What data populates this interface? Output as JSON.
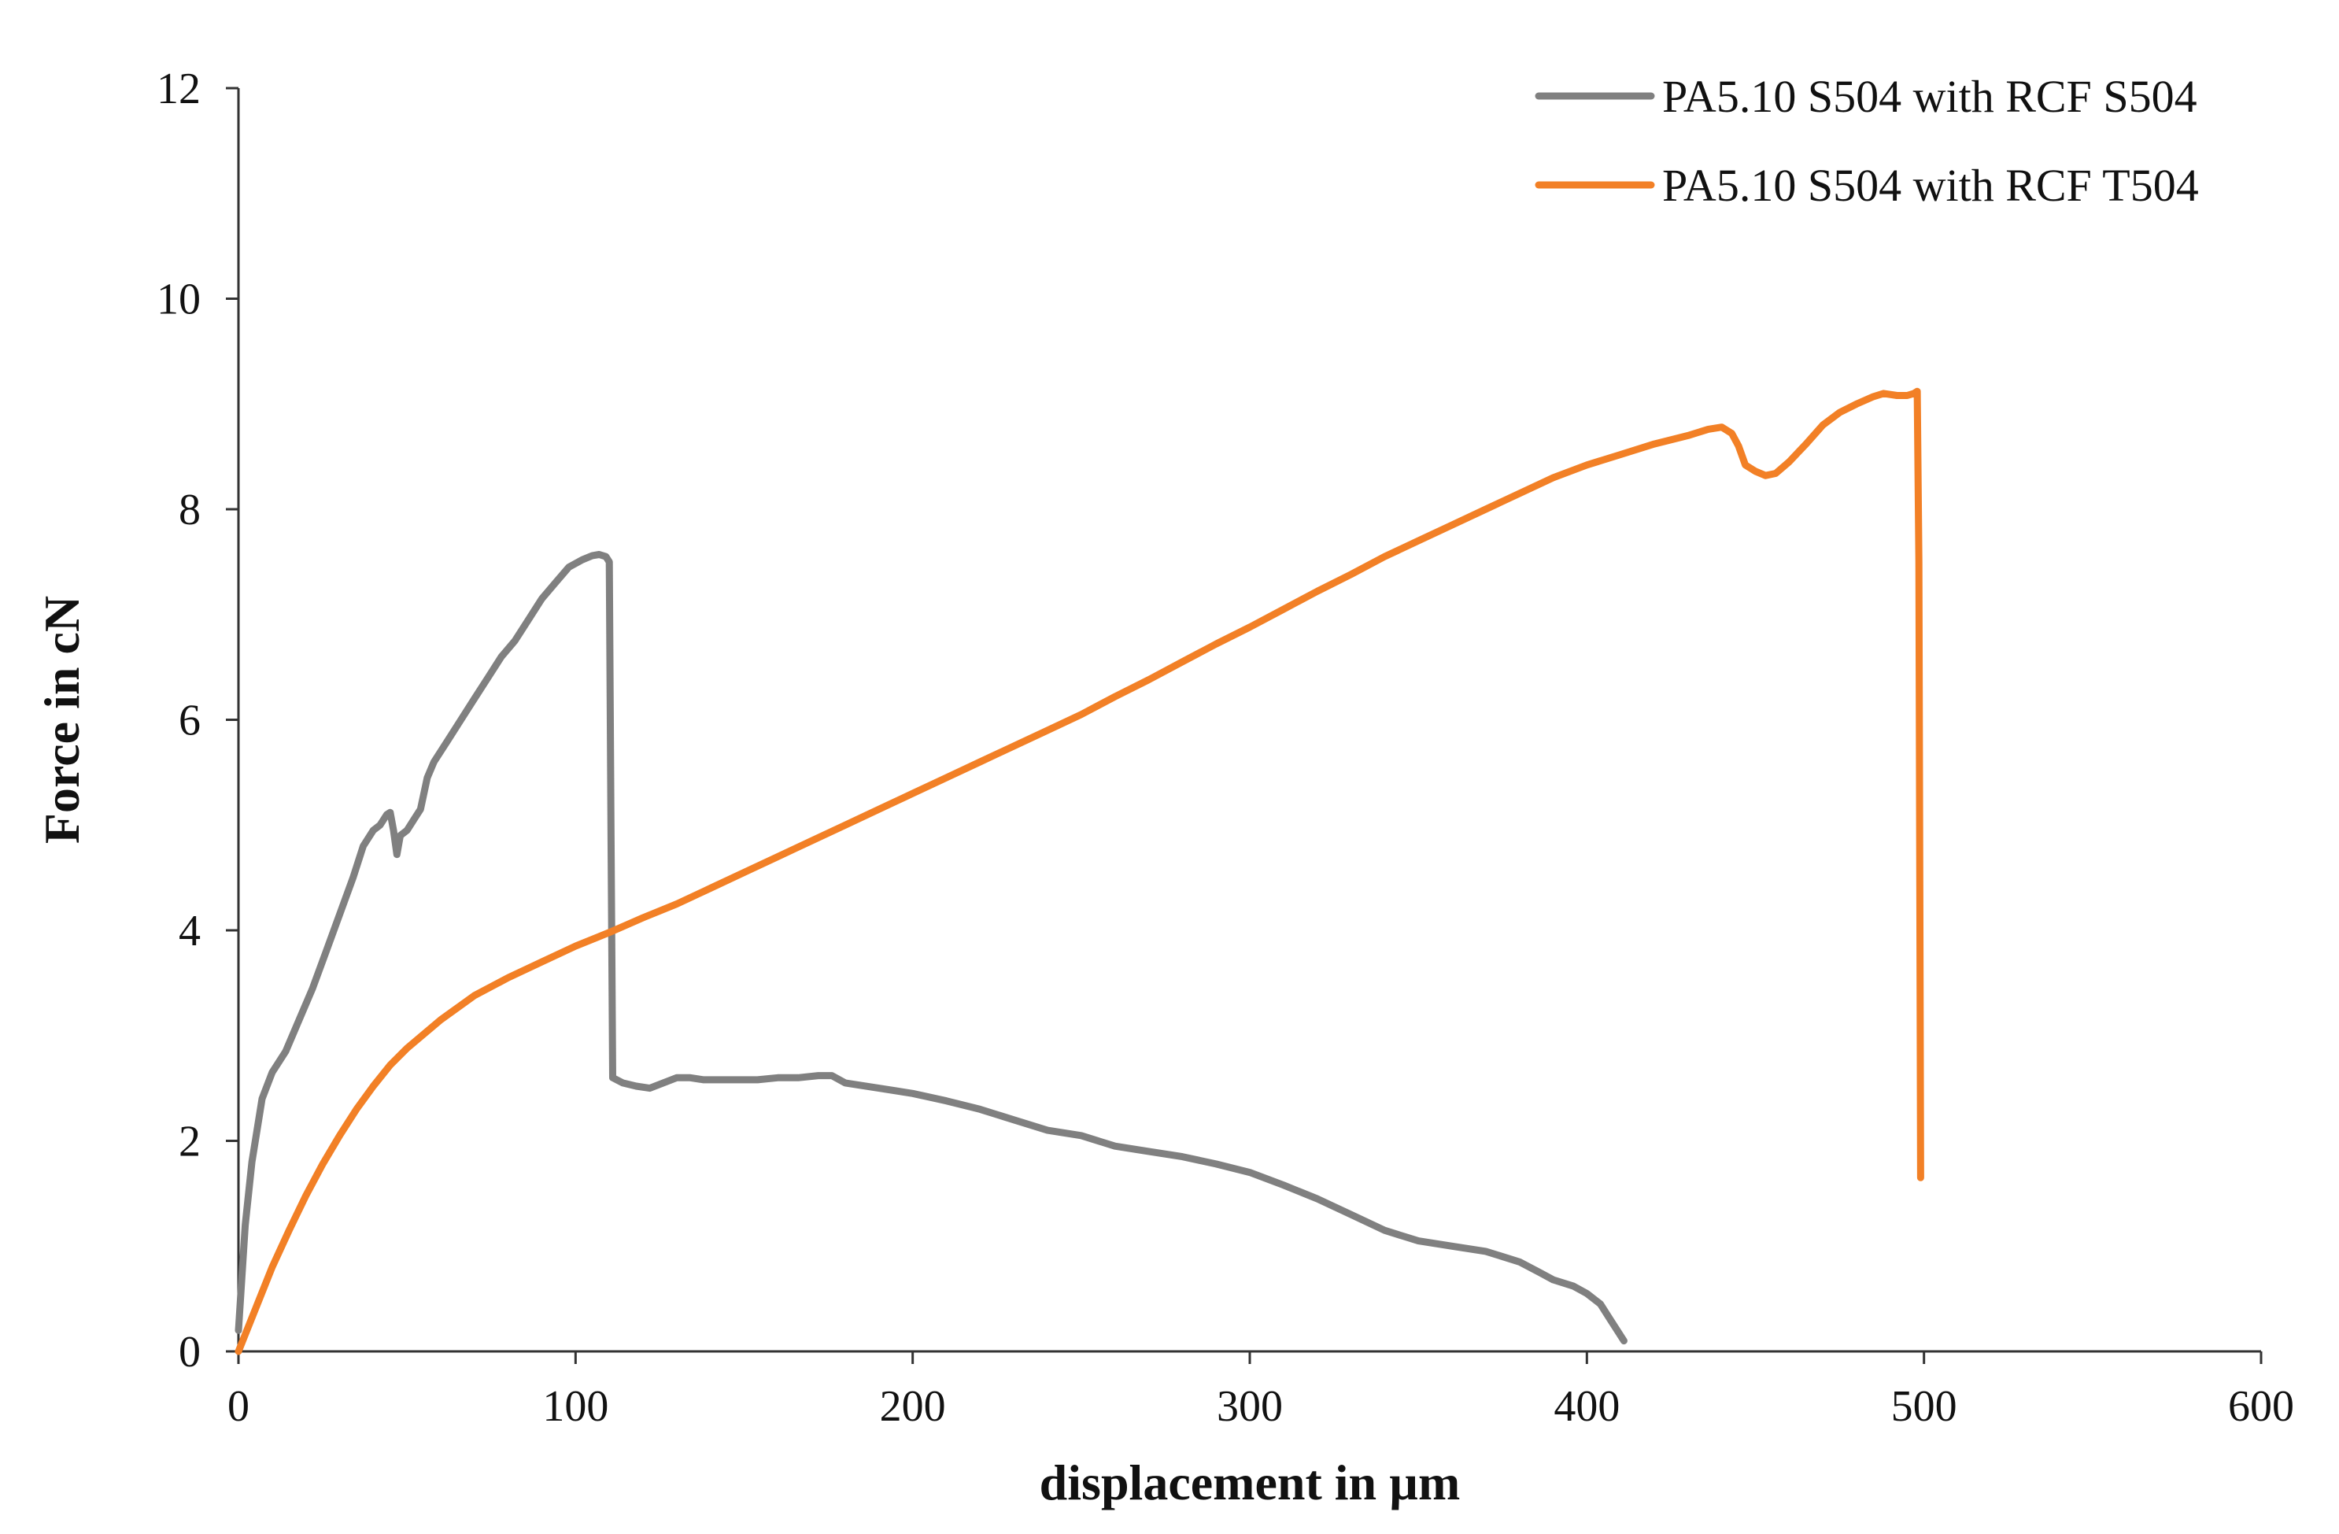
{
  "chart_data": {
    "type": "line",
    "title": "",
    "xlabel": "displacement in µm",
    "ylabel": "Force in cN",
    "xlim": [
      0,
      600
    ],
    "ylim": [
      0,
      12
    ],
    "x_ticks": [
      0,
      100,
      200,
      300,
      400,
      500,
      600
    ],
    "y_ticks": [
      0,
      2,
      4,
      6,
      8,
      10,
      12
    ],
    "x_tick_labels": [
      "0",
      "100",
      "200",
      "300",
      "400",
      "500",
      "600"
    ],
    "y_tick_labels": [
      "0",
      "2",
      "4",
      "6",
      "8",
      "10",
      "12"
    ],
    "grid": false,
    "legend_position": "top-right",
    "series": [
      {
        "name": "PA5.10 S504 with RCF S504",
        "color": "#808080",
        "points": [
          [
            0,
            0.2
          ],
          [
            2,
            1.2
          ],
          [
            4,
            1.8
          ],
          [
            7,
            2.4
          ],
          [
            10,
            2.65
          ],
          [
            14,
            2.85
          ],
          [
            18,
            3.15
          ],
          [
            22,
            3.45
          ],
          [
            26,
            3.8
          ],
          [
            30,
            4.15
          ],
          [
            34,
            4.5
          ],
          [
            37,
            4.8
          ],
          [
            40,
            4.95
          ],
          [
            42,
            5.0
          ],
          [
            44,
            5.1
          ],
          [
            45,
            5.12
          ],
          [
            46,
            4.95
          ],
          [
            47,
            4.72
          ],
          [
            48,
            4.9
          ],
          [
            50,
            4.95
          ],
          [
            52,
            5.05
          ],
          [
            54,
            5.15
          ],
          [
            56,
            5.45
          ],
          [
            58,
            5.6
          ],
          [
            62,
            5.8
          ],
          [
            66,
            6.0
          ],
          [
            70,
            6.2
          ],
          [
            74,
            6.4
          ],
          [
            78,
            6.6
          ],
          [
            82,
            6.75
          ],
          [
            86,
            6.95
          ],
          [
            90,
            7.15
          ],
          [
            94,
            7.3
          ],
          [
            98,
            7.45
          ],
          [
            102,
            7.52
          ],
          [
            105,
            7.56
          ],
          [
            107,
            7.57
          ],
          [
            109,
            7.55
          ],
          [
            110,
            7.5
          ],
          [
            110.5,
            5.0
          ],
          [
            111,
            2.6
          ],
          [
            114,
            2.55
          ],
          [
            118,
            2.52
          ],
          [
            122,
            2.5
          ],
          [
            126,
            2.55
          ],
          [
            130,
            2.6
          ],
          [
            134,
            2.6
          ],
          [
            138,
            2.58
          ],
          [
            142,
            2.58
          ],
          [
            148,
            2.58
          ],
          [
            154,
            2.58
          ],
          [
            160,
            2.6
          ],
          [
            166,
            2.6
          ],
          [
            172,
            2.62
          ],
          [
            176,
            2.62
          ],
          [
            180,
            2.55
          ],
          [
            190,
            2.5
          ],
          [
            200,
            2.45
          ],
          [
            210,
            2.38
          ],
          [
            220,
            2.3
          ],
          [
            230,
            2.2
          ],
          [
            240,
            2.1
          ],
          [
            250,
            2.05
          ],
          [
            260,
            1.95
          ],
          [
            270,
            1.9
          ],
          [
            280,
            1.85
          ],
          [
            290,
            1.78
          ],
          [
            300,
            1.7
          ],
          [
            310,
            1.58
          ],
          [
            320,
            1.45
          ],
          [
            330,
            1.3
          ],
          [
            340,
            1.15
          ],
          [
            350,
            1.05
          ],
          [
            360,
            1.0
          ],
          [
            370,
            0.95
          ],
          [
            380,
            0.85
          ],
          [
            386,
            0.75
          ],
          [
            390,
            0.68
          ],
          [
            396,
            0.62
          ],
          [
            400,
            0.55
          ],
          [
            404,
            0.45
          ],
          [
            407,
            0.3
          ],
          [
            409,
            0.2
          ],
          [
            411,
            0.1
          ]
        ]
      },
      {
        "name": "PA5.10 S504 with RCF T504",
        "color": "#f28026",
        "points": [
          [
            0,
            0.0
          ],
          [
            5,
            0.4
          ],
          [
            10,
            0.8
          ],
          [
            15,
            1.15
          ],
          [
            20,
            1.48
          ],
          [
            25,
            1.78
          ],
          [
            30,
            2.05
          ],
          [
            35,
            2.3
          ],
          [
            40,
            2.52
          ],
          [
            45,
            2.72
          ],
          [
            50,
            2.88
          ],
          [
            60,
            3.15
          ],
          [
            70,
            3.38
          ],
          [
            80,
            3.55
          ],
          [
            90,
            3.7
          ],
          [
            100,
            3.85
          ],
          [
            110,
            3.98
          ],
          [
            120,
            4.12
          ],
          [
            130,
            4.25
          ],
          [
            140,
            4.4
          ],
          [
            150,
            4.55
          ],
          [
            160,
            4.7
          ],
          [
            170,
            4.85
          ],
          [
            180,
            5.0
          ],
          [
            190,
            5.15
          ],
          [
            200,
            5.3
          ],
          [
            210,
            5.45
          ],
          [
            220,
            5.6
          ],
          [
            230,
            5.75
          ],
          [
            240,
            5.9
          ],
          [
            250,
            6.05
          ],
          [
            260,
            6.22
          ],
          [
            270,
            6.38
          ],
          [
            280,
            6.55
          ],
          [
            290,
            6.72
          ],
          [
            300,
            6.88
          ],
          [
            310,
            7.05
          ],
          [
            320,
            7.22
          ],
          [
            330,
            7.38
          ],
          [
            340,
            7.55
          ],
          [
            350,
            7.7
          ],
          [
            360,
            7.85
          ],
          [
            370,
            8.0
          ],
          [
            380,
            8.15
          ],
          [
            390,
            8.3
          ],
          [
            400,
            8.42
          ],
          [
            410,
            8.52
          ],
          [
            420,
            8.62
          ],
          [
            430,
            8.7
          ],
          [
            436,
            8.76
          ],
          [
            440,
            8.78
          ],
          [
            443,
            8.72
          ],
          [
            445,
            8.6
          ],
          [
            447,
            8.42
          ],
          [
            450,
            8.36
          ],
          [
            453,
            8.32
          ],
          [
            456,
            8.34
          ],
          [
            460,
            8.45
          ],
          [
            465,
            8.62
          ],
          [
            470,
            8.8
          ],
          [
            475,
            8.92
          ],
          [
            480,
            9.0
          ],
          [
            485,
            9.07
          ],
          [
            488,
            9.1
          ],
          [
            492,
            9.08
          ],
          [
            495,
            9.08
          ],
          [
            497,
            9.1
          ],
          [
            498,
            9.12
          ],
          [
            498.5,
            7.5
          ],
          [
            499,
            1.65
          ]
        ]
      }
    ]
  }
}
